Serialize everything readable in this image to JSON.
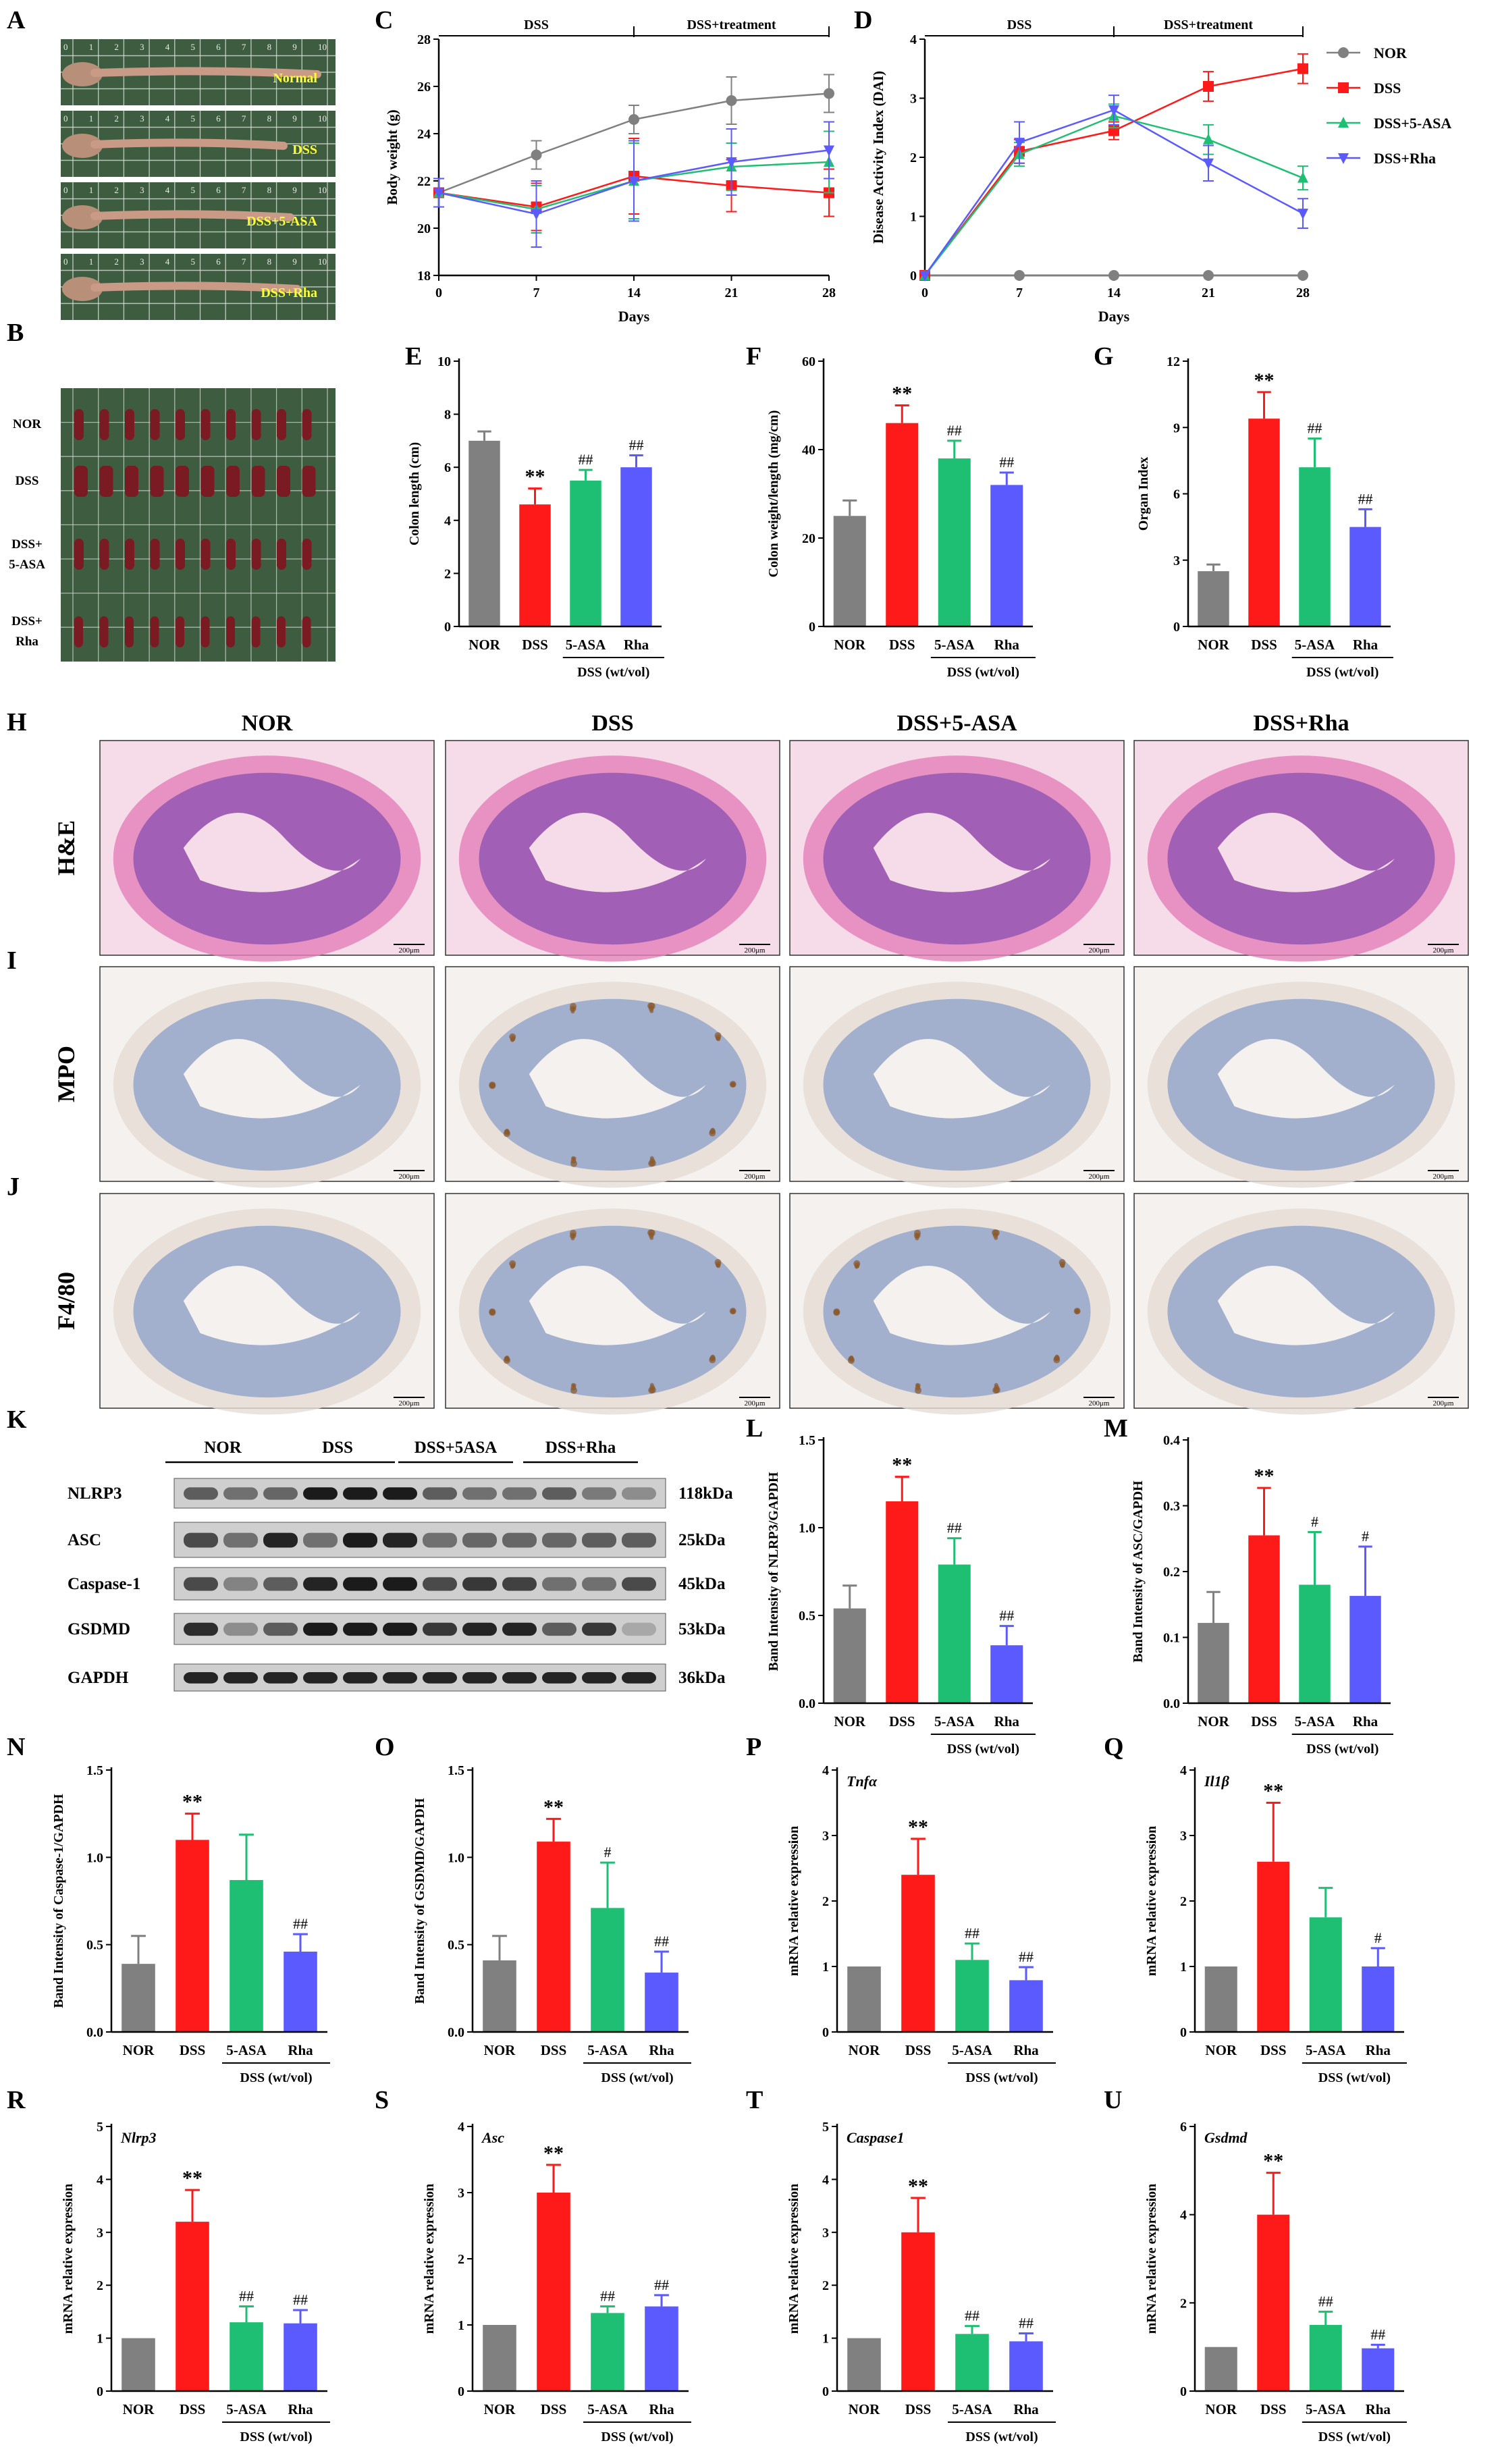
{
  "groups": [
    "NOR",
    "DSS",
    "DSS+5-ASA",
    "DSS+Rha"
  ],
  "colors": {
    "NOR": "#808080",
    "DSS": "#ff1a1a",
    "ASA": "#1fbf73",
    "Rha": "#5a5aff"
  },
  "panel_labels": [
    "A",
    "B",
    "C",
    "D",
    "E",
    "F",
    "G",
    "H",
    "I",
    "J",
    "K",
    "L",
    "M",
    "N",
    "O",
    "P",
    "Q",
    "R",
    "S",
    "T",
    "U"
  ],
  "photo_a": {
    "labels": [
      "Normal",
      "DSS",
      "DSS+5-ASA",
      "DSS+Rha"
    ],
    "ruler_ticks": [
      "0",
      "1",
      "2",
      "3",
      "4",
      "5",
      "6",
      "7",
      "8",
      "9",
      "10"
    ]
  },
  "photo_b": {
    "row_labels": [
      "NOR",
      "DSS",
      "DSS+\n5-ASA",
      "DSS+\nRha"
    ]
  },
  "histo": {
    "col_titles": [
      "NOR",
      "DSS",
      "DSS+5-ASA",
      "DSS+Rha"
    ],
    "row_titles": [
      "H&E",
      "MPO",
      "F4/80"
    ],
    "scale_bar": "200μm"
  },
  "western": {
    "group_labels": [
      "NOR",
      "DSS",
      "DSS+5ASA",
      "DSS+Rha"
    ],
    "proteins": [
      "NLRP3",
      "ASC",
      "Caspase-1",
      "GSDMD",
      "GAPDH"
    ],
    "sizes": [
      "118kDa",
      "25kDa",
      "45kDa",
      "53kDa",
      "36kDa"
    ]
  },
  "bar_categories": [
    "NOR",
    "DSS",
    "5-ASA",
    "Rha"
  ],
  "bar_group_label": "DSS (wt/vol)",
  "chart_data": [
    {
      "id": "C",
      "type": "line",
      "title": "",
      "xlabel": "Days",
      "ylabel": "Body weight (g)",
      "x": [
        0,
        7,
        14,
        21,
        28
      ],
      "xlim": [
        0,
        28
      ],
      "ylim": [
        18,
        28
      ],
      "xticks": [
        0,
        7,
        14,
        21,
        28
      ],
      "yticks": [
        18,
        20,
        22,
        24,
        26,
        28
      ],
      "phases": [
        "DSS",
        "DSS+treatment"
      ],
      "series": [
        {
          "name": "NOR",
          "color": "#808080",
          "marker": "circle",
          "values": [
            21.5,
            23.1,
            24.6,
            25.4,
            25.7
          ],
          "err": [
            0.6,
            0.6,
            0.6,
            1.0,
            0.8
          ]
        },
        {
          "name": "DSS",
          "color": "#ff1a1a",
          "marker": "square",
          "values": [
            21.5,
            20.9,
            22.2,
            21.8,
            21.5
          ],
          "err": [
            0.6,
            1.0,
            1.6,
            1.1,
            1.0
          ]
        },
        {
          "name": "DSS+5-ASA",
          "color": "#1fbf73",
          "marker": "triangle-up",
          "values": [
            21.5,
            20.8,
            22.0,
            22.6,
            22.8
          ],
          "err": [
            0.6,
            1.0,
            1.6,
            1.0,
            1.3
          ]
        },
        {
          "name": "DSS+Rha",
          "color": "#5a5aff",
          "marker": "triangle-down",
          "values": [
            21.5,
            20.6,
            22.0,
            22.8,
            23.3
          ],
          "err": [
            0.6,
            1.4,
            1.7,
            1.4,
            1.2
          ]
        }
      ]
    },
    {
      "id": "D",
      "type": "line",
      "title": "",
      "xlabel": "Days",
      "ylabel": "Disease Activity Index (DAI)",
      "x": [
        0,
        7,
        14,
        21,
        28
      ],
      "xlim": [
        0,
        28
      ],
      "ylim": [
        0,
        4
      ],
      "xticks": [
        0,
        7,
        14,
        21,
        28
      ],
      "yticks": [
        0,
        1,
        2,
        3,
        4
      ],
      "phases": [
        "DSS",
        "DSS+treatment"
      ],
      "series": [
        {
          "name": "NOR",
          "color": "#808080",
          "marker": "circle",
          "values": [
            0,
            0,
            0,
            0,
            0
          ],
          "err": [
            0,
            0,
            0,
            0,
            0
          ]
        },
        {
          "name": "DSS",
          "color": "#ff1a1a",
          "marker": "square",
          "values": [
            0,
            2.1,
            2.45,
            3.2,
            3.5
          ],
          "err": [
            0,
            0.2,
            0.15,
            0.25,
            0.25
          ]
        },
        {
          "name": "DSS+5-ASA",
          "color": "#1fbf73",
          "marker": "triangle-up",
          "values": [
            0,
            2.05,
            2.7,
            2.3,
            1.65
          ],
          "err": [
            0,
            0.2,
            0.2,
            0.25,
            0.2
          ]
        },
        {
          "name": "DSS+Rha",
          "color": "#5a5aff",
          "marker": "triangle-down",
          "values": [
            0,
            2.25,
            2.8,
            1.9,
            1.05
          ],
          "err": [
            0,
            0.35,
            0.25,
            0.3,
            0.25
          ]
        }
      ]
    },
    {
      "id": "E",
      "type": "bar",
      "ylabel": "Colon length (cm)",
      "ylim": [
        0,
        10
      ],
      "yticks": [
        "0",
        "2",
        "4",
        "6",
        "8",
        "10"
      ],
      "values": [
        7.0,
        4.6,
        5.5,
        6.0
      ],
      "err": [
        0.35,
        0.6,
        0.4,
        0.45
      ],
      "marks": [
        "",
        "**",
        "##",
        "##"
      ]
    },
    {
      "id": "F",
      "type": "bar",
      "ylabel": "Colon weight/length (mg/cm)",
      "ylim": [
        0,
        60
      ],
      "yticks": [
        "0",
        "20",
        "40",
        "60"
      ],
      "values": [
        25,
        46,
        38,
        32
      ],
      "err": [
        3.5,
        4,
        4,
        2.8
      ],
      "marks": [
        "",
        "**",
        "##",
        "##"
      ]
    },
    {
      "id": "G",
      "type": "bar",
      "ylabel": "Organ Index",
      "ylim": [
        0,
        12
      ],
      "yticks": [
        "0",
        "3",
        "6",
        "9",
        "12"
      ],
      "values": [
        2.5,
        9.4,
        7.2,
        4.5
      ],
      "err": [
        0.3,
        1.2,
        1.3,
        0.8
      ],
      "marks": [
        "",
        "**",
        "##",
        "##"
      ]
    },
    {
      "id": "L",
      "type": "bar",
      "ylabel": "Band Intensity of NLRP3/GAPDH",
      "ylim": [
        0,
        1.5
      ],
      "yticks": [
        "0.0",
        "0.5",
        "1.0",
        "1.5"
      ],
      "values": [
        0.54,
        1.15,
        0.79,
        0.33
      ],
      "err": [
        0.13,
        0.14,
        0.15,
        0.11
      ],
      "marks": [
        "",
        "**",
        "##",
        "##"
      ]
    },
    {
      "id": "M",
      "type": "bar",
      "ylabel": "Band Intensity of ASC/GAPDH",
      "ylim": [
        0,
        0.4
      ],
      "yticks": [
        "0.0",
        "0.1",
        "0.2",
        "0.3",
        "0.4"
      ],
      "values": [
        0.122,
        0.255,
        0.18,
        0.163
      ],
      "err": [
        0.047,
        0.072,
        0.08,
        0.075
      ],
      "marks": [
        "",
        "**",
        "#",
        "#"
      ]
    },
    {
      "id": "N",
      "type": "bar",
      "ylabel": "Band Intensity of Caspase-1/GAPDH",
      "ylim": [
        0,
        1.5
      ],
      "yticks": [
        "0.0",
        "0.5",
        "1.0",
        "1.5"
      ],
      "values": [
        0.39,
        1.1,
        0.87,
        0.46
      ],
      "err": [
        0.16,
        0.15,
        0.26,
        0.1
      ],
      "marks": [
        "",
        "**",
        "",
        "##"
      ]
    },
    {
      "id": "O",
      "type": "bar",
      "ylabel": "Band Intensity of GSDMD/GAPDH",
      "ylim": [
        0,
        1.5
      ],
      "yticks": [
        "0.0",
        "0.5",
        "1.0",
        "1.5"
      ],
      "values": [
        0.41,
        1.09,
        0.71,
        0.34
      ],
      "err": [
        0.14,
        0.13,
        0.26,
        0.12
      ],
      "marks": [
        "",
        "**",
        "#",
        "##"
      ]
    },
    {
      "id": "P",
      "type": "bar",
      "ylabel": "mRNA relative expression",
      "gene": "Tnfα",
      "ylim": [
        0,
        4
      ],
      "yticks": [
        "0",
        "1",
        "2",
        "3",
        "4"
      ],
      "values": [
        1,
        2.4,
        1.1,
        0.79
      ],
      "err": [
        0,
        0.55,
        0.25,
        0.2
      ],
      "marks": [
        "",
        "**",
        "##",
        "##"
      ]
    },
    {
      "id": "Q",
      "type": "bar",
      "ylabel": "mRNA relative expression",
      "gene": "Il1β",
      "ylim": [
        0,
        4
      ],
      "yticks": [
        "0",
        "1",
        "2",
        "3",
        "4"
      ],
      "values": [
        1,
        2.6,
        1.75,
        1.0
      ],
      "err": [
        0,
        0.9,
        0.45,
        0.28
      ],
      "marks": [
        "",
        "**",
        "",
        "#"
      ]
    },
    {
      "id": "R",
      "type": "bar",
      "ylabel": "mRNA relative expression",
      "gene": "Nlrp3",
      "ylim": [
        0,
        5
      ],
      "yticks": [
        "0",
        "1",
        "2",
        "3",
        "4",
        "5"
      ],
      "values": [
        1,
        3.2,
        1.3,
        1.28
      ],
      "err": [
        0,
        0.6,
        0.3,
        0.25
      ],
      "marks": [
        "",
        "**",
        "##",
        "##"
      ]
    },
    {
      "id": "S",
      "type": "bar",
      "ylabel": "mRNA relative expression",
      "gene": "Asc",
      "ylim": [
        0,
        4
      ],
      "yticks": [
        "0",
        "1",
        "2",
        "3",
        "4"
      ],
      "values": [
        1,
        3.0,
        1.18,
        1.28
      ],
      "err": [
        0,
        0.42,
        0.1,
        0.17
      ],
      "marks": [
        "",
        "**",
        "##",
        "##"
      ]
    },
    {
      "id": "T",
      "type": "bar",
      "ylabel": "mRNA relative expression",
      "gene": "Caspase1",
      "ylim": [
        0,
        5
      ],
      "yticks": [
        "0",
        "1",
        "2",
        "3",
        "4",
        "5"
      ],
      "values": [
        1,
        3.0,
        1.08,
        0.94
      ],
      "err": [
        0,
        0.65,
        0.15,
        0.15
      ],
      "marks": [
        "",
        "**",
        "##",
        "##"
      ]
    },
    {
      "id": "U",
      "type": "bar",
      "ylabel": "mRNA relative expression",
      "gene": "Gsdmd",
      "ylim": [
        0,
        6
      ],
      "yticks": [
        "0",
        "2",
        "4",
        "6"
      ],
      "values": [
        1,
        4.0,
        1.5,
        0.97
      ],
      "err": [
        0,
        0.95,
        0.3,
        0.08
      ],
      "marks": [
        "",
        "**",
        "##",
        "##"
      ]
    }
  ]
}
